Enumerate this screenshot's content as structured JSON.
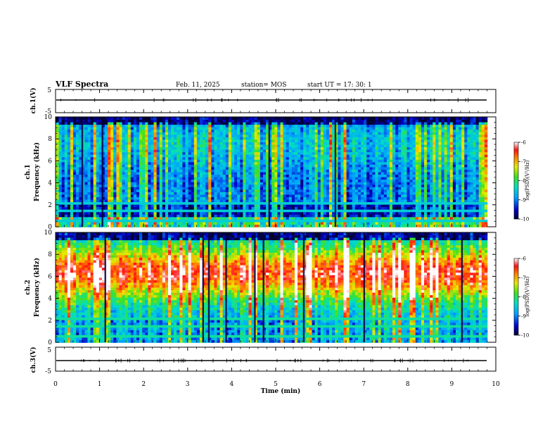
{
  "header": {
    "title": "VLF Spectra",
    "date": "Feb. 11, 2025",
    "station": "station= MOS",
    "start": "start  UT =   17: 30: 1"
  },
  "chart_data": [
    {
      "type": "line",
      "name": "ch1-waveform",
      "ylabel": "ch.1(V)",
      "ylim": [
        -5,
        5
      ],
      "yticks": [
        "5",
        "-5"
      ],
      "baseline": 0,
      "x_range_min": [
        0,
        9.8
      ]
    },
    {
      "type": "heatmap",
      "name": "ch1-spectrogram",
      "ylabel_line1": "ch.1",
      "ylabel_line2": "Frequency (kHz)",
      "ylim": [
        0,
        10
      ],
      "yticks": [
        "0",
        "2",
        "4",
        "6",
        "8",
        "10"
      ],
      "data_end_min": 9.8,
      "colorbar": {
        "label": "log(PSD)(V²/Hz)",
        "range": [
          -10,
          -6
        ],
        "ticks": [
          "-6",
          "-7",
          "-8",
          "-9",
          "-10"
        ]
      },
      "profile": "low-intensity broadband noise with bright vertical spherics and horizontal bands below 2 kHz"
    },
    {
      "type": "heatmap",
      "name": "ch2-spectrogram",
      "ylabel_line1": "ch.2",
      "ylabel_line2": "Frequency (kHz)",
      "ylim": [
        0,
        10
      ],
      "yticks": [
        "0",
        "2",
        "4",
        "6",
        "8",
        "10"
      ],
      "data_end_min": 9.8,
      "colorbar": {
        "label": "log(PSD)(V²/Hz)",
        "range": [
          -10,
          -6
        ],
        "ticks": [
          "-6",
          "-7",
          "-8",
          "-9",
          "-10"
        ]
      },
      "profile": "strong broadband emission 3-9 kHz peaking near 6-7 kHz with horizontal bands below 2 kHz"
    },
    {
      "type": "line",
      "name": "ch3-waveform",
      "ylabel": "ch.3(V)",
      "ylim": [
        -5,
        5
      ],
      "yticks": [
        "5",
        "-5"
      ],
      "baseline": 0,
      "x_range_min": [
        0,
        9.8
      ]
    }
  ],
  "x_axis": {
    "label": "Time (min)",
    "range": [
      0,
      10
    ],
    "ticks": [
      "0",
      "1",
      "2",
      "3",
      "4",
      "5",
      "6",
      "7",
      "8",
      "9",
      "10"
    ]
  }
}
